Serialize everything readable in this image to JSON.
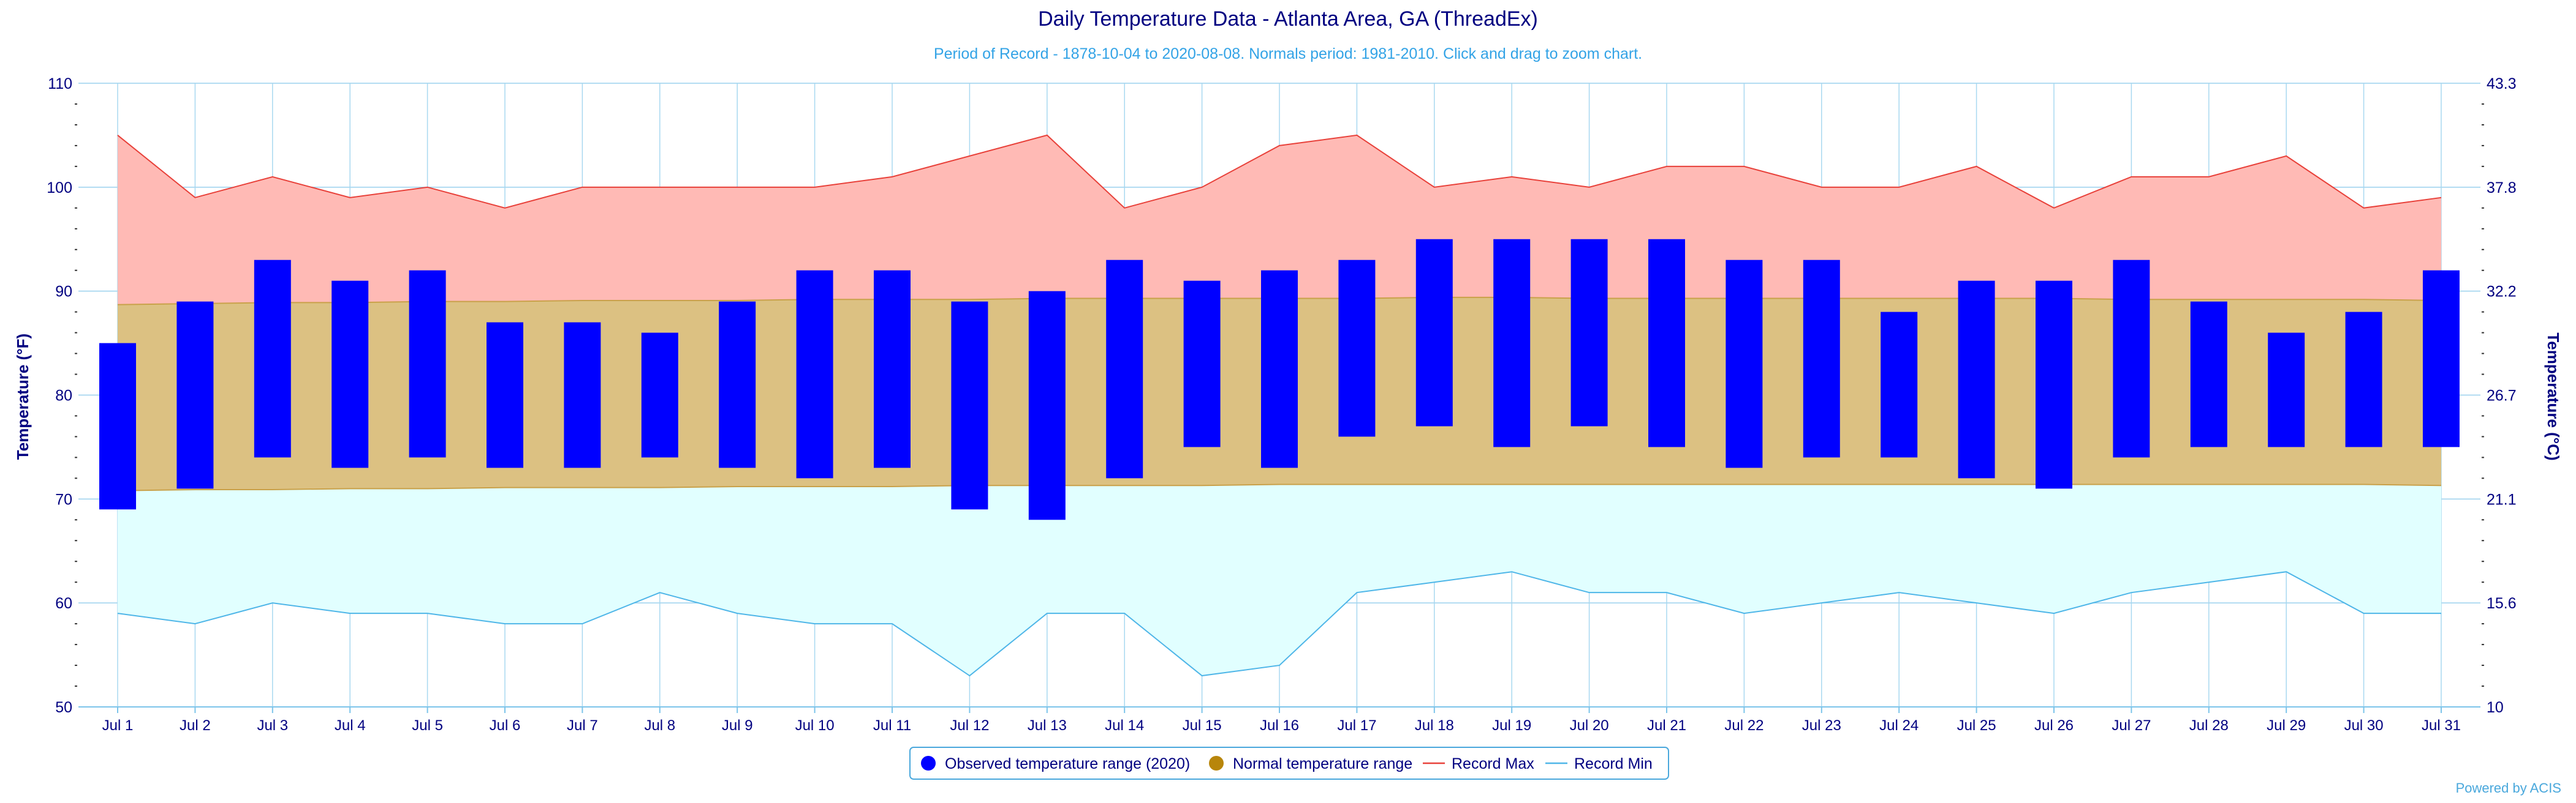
{
  "chart_data": {
    "type": "area+range-bar",
    "title": "Daily Temperature Data - Atlanta Area, GA (ThreadEx)",
    "subtitle": "Period of Record - 1878-10-04 to 2020-08-08. Normals period: 1981-2010. Click and drag to zoom chart.",
    "ylabel_left": "Temperature (°F)",
    "ylabel_right": "Temperature (°C)",
    "ylim": [
      50,
      110
    ],
    "y_ticks": [
      "50",
      "60",
      "70",
      "80",
      "90",
      "100",
      "110"
    ],
    "y_ticks_right": [
      "10",
      "15.6",
      "21.1",
      "26.7",
      "32.2",
      "37.8",
      "43.3"
    ],
    "categories": [
      "Jul 1",
      "Jul 2",
      "Jul 3",
      "Jul 4",
      "Jul 5",
      "Jul 6",
      "Jul 7",
      "Jul 8",
      "Jul 9",
      "Jul 10",
      "Jul 11",
      "Jul 12",
      "Jul 13",
      "Jul 14",
      "Jul 15",
      "Jul 16",
      "Jul 17",
      "Jul 18",
      "Jul 19",
      "Jul 20",
      "Jul 21",
      "Jul 22",
      "Jul 23",
      "Jul 24",
      "Jul 25",
      "Jul 26",
      "Jul 27",
      "Jul 28",
      "Jul 29",
      "Jul 30",
      "Jul 31"
    ],
    "grid": true,
    "legend_position": "bottom-center",
    "series": [
      {
        "name": "Observed temperature range (2020)",
        "color": "#0000ff",
        "low": [
          69,
          71,
          74,
          73,
          74,
          73,
          73,
          74,
          73,
          72,
          73,
          69,
          68,
          72,
          75,
          73,
          76,
          77,
          75,
          77,
          75,
          73,
          74,
          74,
          72,
          71,
          74,
          75,
          75,
          75,
          75
        ],
        "high": [
          85,
          89,
          93,
          91,
          92,
          87,
          87,
          86,
          89,
          92,
          92,
          89,
          90,
          93,
          91,
          92,
          93,
          95,
          95,
          95,
          95,
          93,
          93,
          88,
          91,
          91,
          93,
          89,
          86,
          88,
          92
        ]
      },
      {
        "name": "Normal temperature range",
        "color": "#b8860b",
        "low": [
          70.8,
          70.9,
          70.9,
          71,
          71,
          71.1,
          71.1,
          71.1,
          71.2,
          71.2,
          71.2,
          71.3,
          71.3,
          71.3,
          71.3,
          71.4,
          71.4,
          71.4,
          71.4,
          71.4,
          71.4,
          71.4,
          71.4,
          71.4,
          71.4,
          71.4,
          71.4,
          71.4,
          71.4,
          71.4,
          71.3
        ],
        "high": [
          88.7,
          88.8,
          88.9,
          88.9,
          89,
          89,
          89.1,
          89.1,
          89.1,
          89.2,
          89.2,
          89.2,
          89.3,
          89.3,
          89.3,
          89.3,
          89.3,
          89.4,
          89.4,
          89.3,
          89.3,
          89.3,
          89.3,
          89.3,
          89.3,
          89.3,
          89.2,
          89.2,
          89.2,
          89.2,
          89.1
        ]
      },
      {
        "name": "Record Max",
        "color": "#e8413a",
        "values": [
          105,
          99,
          101,
          99,
          100,
          98,
          100,
          100,
          100,
          100,
          101,
          103,
          105,
          98,
          100,
          104,
          105,
          100,
          101,
          100,
          102,
          102,
          100,
          100,
          102,
          98,
          101,
          101,
          103,
          98,
          99
        ]
      },
      {
        "name": "Record Min",
        "color": "#4fb6e8",
        "values": [
          59,
          58,
          60,
          59,
          59,
          58,
          58,
          61,
          59,
          58,
          58,
          53,
          59,
          59,
          53,
          54,
          61,
          62,
          63,
          61,
          61,
          59,
          60,
          61,
          60,
          59,
          61,
          62,
          63,
          59,
          59
        ]
      }
    ],
    "credit": "Powered by ACIS"
  }
}
